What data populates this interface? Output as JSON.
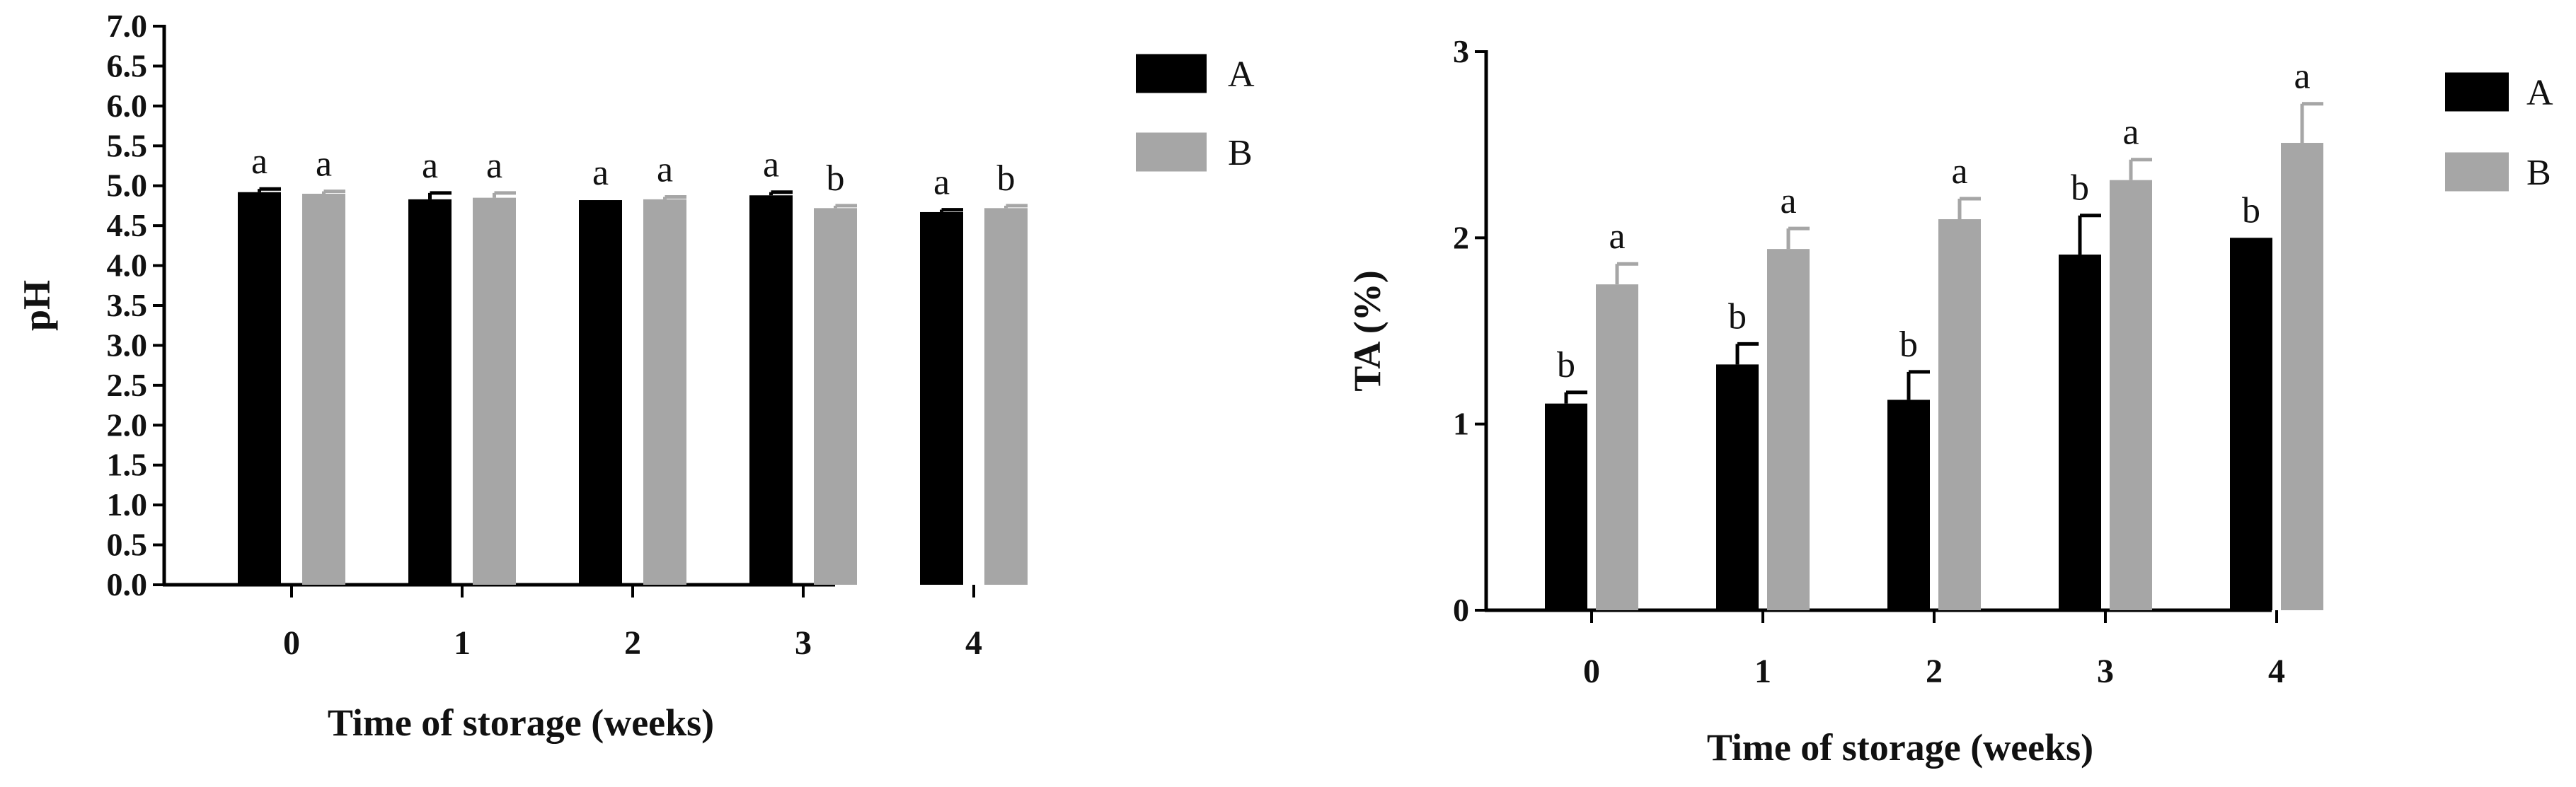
{
  "chart_data": [
    {
      "type": "bar",
      "categories": [
        "0",
        "1",
        "2",
        "3",
        "4"
      ],
      "xlabel": "Time of storage (weeks)",
      "ylabel": "pH",
      "ylim": [
        0,
        7.0
      ],
      "yticks": [
        "0.0",
        "0.5",
        "1.0",
        "1.5",
        "2.0",
        "2.5",
        "3.0",
        "3.5",
        "4.0",
        "4.5",
        "5.0",
        "5.5",
        "6.0",
        "6.5",
        "7.0"
      ],
      "grid": false,
      "legend_position": "top-right",
      "series": [
        {
          "name": "A",
          "color": "#000000",
          "values": [
            4.92,
            4.83,
            4.82,
            4.88,
            4.67
          ],
          "errors": [
            0.04,
            0.08,
            0.0,
            0.04,
            0.03
          ],
          "letters": [
            "a",
            "a",
            "a",
            "a",
            "a"
          ]
        },
        {
          "name": "B",
          "color": "#a6a6a6",
          "values": [
            4.9,
            4.85,
            4.83,
            4.72,
            4.72
          ],
          "errors": [
            0.03,
            0.06,
            0.03,
            0.03,
            0.03
          ],
          "letters": [
            "a",
            "a",
            "a",
            "b",
            "b"
          ]
        }
      ]
    },
    {
      "type": "bar",
      "categories": [
        "0",
        "1",
        "2",
        "3",
        "4"
      ],
      "xlabel": "Time of storage (weeks)",
      "ylabel": "TA (%)",
      "ylim": [
        0,
        3
      ],
      "yticks": [
        "0",
        "1",
        "2",
        "3"
      ],
      "grid": false,
      "legend_position": "top-right",
      "series": [
        {
          "name": "A",
          "color": "#000000",
          "values": [
            1.11,
            1.32,
            1.13,
            1.91,
            2.0
          ],
          "errors": [
            0.06,
            0.11,
            0.15,
            0.21,
            0.0
          ],
          "letters": [
            "b",
            "b",
            "b",
            "b",
            "b"
          ]
        },
        {
          "name": "B",
          "color": "#a6a6a6",
          "values": [
            1.75,
            1.94,
            2.1,
            2.31,
            2.51
          ],
          "errors": [
            0.11,
            0.11,
            0.11,
            0.11,
            0.21
          ],
          "letters": [
            "a",
            "a",
            "a",
            "a",
            "a"
          ]
        }
      ]
    }
  ]
}
